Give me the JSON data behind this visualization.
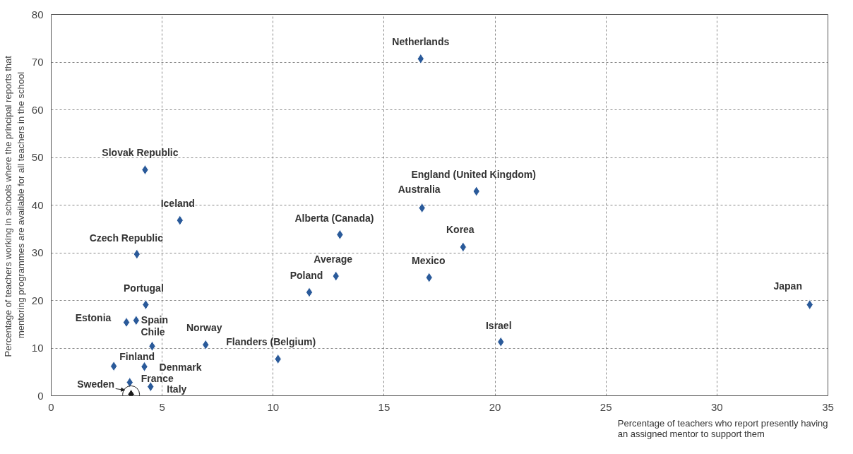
{
  "chart_data": {
    "type": "scatter",
    "xlabel": "Percentage of teachers who report presently having\nan assigned mentor to support them",
    "ylabel": "Percentage of teachers working in schools where the principal reports  that\nmentoring programmes are available for all teachers in the school",
    "xlim": [
      0,
      35
    ],
    "ylim": [
      0,
      80
    ],
    "xticks": [
      0,
      5,
      10,
      15,
      20,
      25,
      30,
      35
    ],
    "yticks": [
      0,
      10,
      20,
      30,
      40,
      50,
      60,
      70,
      80
    ],
    "grid": true,
    "marker": "diamond",
    "series": [
      {
        "x": [
          16.65,
          4.23,
          5.8,
          3.86,
          4.26,
          3.39,
          3.83,
          4.55,
          2.82,
          4.2,
          3.54,
          4.48,
          3.6,
          6.96,
          10.22,
          11.63,
          12.83,
          13.01,
          17.03,
          16.71,
          18.56,
          19.16,
          20.26,
          34.18
        ],
        "values": [
          70.7,
          47.4,
          36.8,
          29.7,
          19.1,
          15.4,
          15.8,
          10.4,
          6.2,
          6.1,
          2.8,
          1.9,
          0.3,
          10.7,
          7.7,
          21.7,
          25.1,
          33.8,
          24.8,
          39.4,
          31.2,
          42.9,
          11.3,
          19.1
        ],
        "colors": [
          "#2a5a9a",
          "#2a5a9a",
          "#2a5a9a",
          "#2a5a9a",
          "#2a5a9a",
          "#2a5a9a",
          "#2a5a9a",
          "#2a5a9a",
          "#2a5a9a",
          "#2a5a9a",
          "#2a5a9a",
          "#2a5a9a",
          "#1a1a1a",
          "#2a5a9a",
          "#2a5a9a",
          "#2a5a9a",
          "#2a5a9a",
          "#2a5a9a",
          "#2a5a9a",
          "#2a5a9a",
          "#2a5a9a",
          "#2a5a9a",
          "#2a5a9a",
          "#2a5a9a"
        ]
      }
    ],
    "annotations": [
      {
        "text": "Netherlands",
        "x": 16.65,
        "y": 70.7
      },
      {
        "text": "Slovak Republic",
        "x": 4.23,
        "y": 47.4
      },
      {
        "text": "Iceland",
        "x": 5.8,
        "y": 36.8
      },
      {
        "text": "Czech Republic",
        "x": 3.86,
        "y": 29.7
      },
      {
        "text": "Portugal",
        "x": 4.26,
        "y": 19.1
      },
      {
        "text": "Estonia",
        "x": 3.39,
        "y": 15.4
      },
      {
        "text": "Spain",
        "x": 3.83,
        "y": 15.8
      },
      {
        "text": "Chile",
        "x": 4.55,
        "y": 10.4
      },
      {
        "text": "Finland",
        "x": 2.82,
        "y": 6.2
      },
      {
        "text": "Denmark",
        "x": 4.2,
        "y": 6.1
      },
      {
        "text": "France",
        "x": 3.54,
        "y": 2.8
      },
      {
        "text": "Italy",
        "x": 4.48,
        "y": 1.9
      },
      {
        "text": "Sweden",
        "x": 3.6,
        "y": 0.3
      },
      {
        "text": "Norway",
        "x": 6.96,
        "y": 10.7
      },
      {
        "text": "Flanders (Belgium)",
        "x": 10.22,
        "y": 7.7
      },
      {
        "text": "Poland",
        "x": 11.63,
        "y": 21.7
      },
      {
        "text": "Average",
        "x": 12.83,
        "y": 25.1
      },
      {
        "text": "Alberta (Canada)",
        "x": 13.01,
        "y": 33.8
      },
      {
        "text": "Mexico",
        "x": 17.03,
        "y": 24.8
      },
      {
        "text": "Australia",
        "x": 16.71,
        "y": 39.4
      },
      {
        "text": "Korea",
        "x": 18.56,
        "y": 31.2
      },
      {
        "text": "England (United Kingdom)",
        "x": 19.16,
        "y": 42.9
      },
      {
        "text": "Israel",
        "x": 20.26,
        "y": 11.3
      },
      {
        "text": "Japan",
        "x": 34.18,
        "y": 19.1
      }
    ]
  }
}
